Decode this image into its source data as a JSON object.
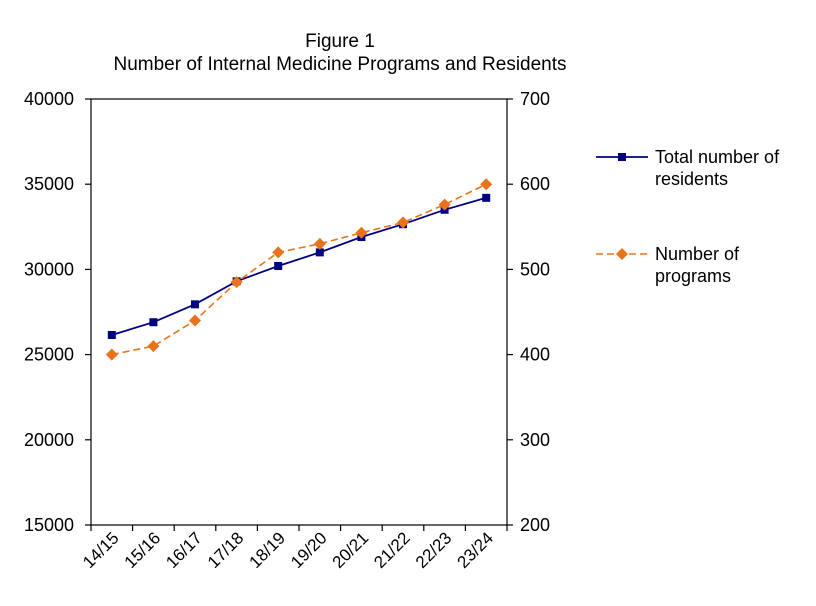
{
  "chart_data": {
    "type": "line",
    "title": "Figure 1",
    "subtitle": "Number of Internal Medicine Programs and Residents",
    "categories": [
      "14/15",
      "15/16",
      "16/17",
      "17/18",
      "18/19",
      "19/20",
      "20/21",
      "21/22",
      "22/23",
      "23/24"
    ],
    "y_left": {
      "ylim": [
        15000,
        40000
      ],
      "ticks": [
        15000,
        20000,
        25000,
        30000,
        35000,
        40000
      ]
    },
    "y_right": {
      "ylim": [
        200,
        700
      ],
      "ticks": [
        200,
        300,
        400,
        500,
        600,
        700
      ]
    },
    "grid": false,
    "legend_position": "right",
    "series": [
      {
        "name_lines": [
          "Total number of",
          "residents"
        ],
        "axis": "left",
        "color": "#000080",
        "line_style": "solid",
        "marker": "square",
        "values": [
          26150,
          26900,
          27950,
          29300,
          30200,
          31000,
          31900,
          32650,
          33500,
          34200
        ]
      },
      {
        "name_lines": [
          "Number of",
          "programs"
        ],
        "axis": "right",
        "color": "#E8731A",
        "line_style": "dashed",
        "marker": "diamond",
        "values": [
          400,
          410,
          440,
          485,
          520,
          530,
          543,
          555,
          576,
          600
        ]
      }
    ]
  }
}
